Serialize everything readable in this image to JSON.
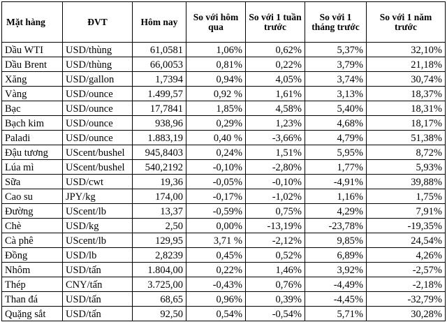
{
  "table": {
    "headers": [
      "Mặt hàng",
      "ĐVT",
      "Hôm nay",
      "So với hôm qua",
      "So với 1 tuần trước",
      "So với 1 tháng trước",
      "So với 1 năm trước"
    ],
    "rows": [
      [
        "Dầu WTI",
        "USD/thùng",
        "61,0581",
        "1,06%",
        "0,62%",
        "5,37%",
        "32,10%"
      ],
      [
        "Dầu Brent",
        "USD/thùng",
        "66,0053",
        "0,81%",
        "0,22%",
        "3,79%",
        "21,18%"
      ],
      [
        "Xăng",
        "USD/gallon",
        "1,7394",
        "0,94%",
        "4,05%",
        "3,74%",
        "30,74%"
      ],
      [
        "Vàng",
        "USD/ounce",
        "1.499,57",
        "0,92 %",
        "1,61%",
        "3,13%",
        "18,37%"
      ],
      [
        "Bạc",
        "USD/ounce",
        "17,7841",
        "1,85%",
        "4,58%",
        "5,40%",
        "18,31%"
      ],
      [
        "Bạch kim",
        "USD/ounce",
        "938,96",
        "0,29%",
        "1,23%",
        "4,68%",
        "18,17%"
      ],
      [
        "Paladi",
        "USD/ounce",
        "1.883,19",
        "0,40 %",
        "-3,66%",
        "4,79%",
        "51,38%"
      ],
      [
        "Đậu tương",
        "UScent/bushel",
        "945,8403",
        "0,24%",
        "1,51%",
        "5,95%",
        "8,72%"
      ],
      [
        "Lúa mì",
        "UScent/bushel",
        "540,2192",
        "-0,10%",
        "-2,80%",
        "1,77%",
        "5,93%"
      ],
      [
        "Sữa",
        "USD/cwt",
        "19,36",
        "-0,05%",
        "-0,10%",
        "-4,91%",
        "39,88%"
      ],
      [
        "Cao su",
        "JPY/kg",
        "174,00",
        "-0,17%",
        "-1,02%",
        "1,16%",
        "1,75%"
      ],
      [
        "Đường",
        "UScent/lb",
        "13,37",
        "-0,59%",
        "0,75%",
        "4,29%",
        "7,91%"
      ],
      [
        "Chè",
        "USD/kg",
        "2,50",
        "0,00%",
        "-13,19%",
        "-23,78%",
        "-19,35%"
      ],
      [
        "Cà phê",
        "UScent/lb",
        "129,95",
        "3,71 %",
        "-2,12%",
        "9,85%",
        "24,54%"
      ],
      [
        "Đồng",
        "USD/lb",
        "2,8239",
        "0,45%",
        "0,52%",
        "6,89%",
        "4,26%"
      ],
      [
        "Nhôm",
        "USD/tấn",
        "1.804,00",
        "0,22%",
        "1,46%",
        "3,92%",
        "-2,57%"
      ],
      [
        "Thép",
        "CNY/tấn",
        "3.725,00",
        "-0,43%",
        "0,76%",
        "-4,49%",
        "-2,18%"
      ],
      [
        "Than đá",
        "USD/tấn",
        "68,65",
        "0,96%",
        "0,39%",
        "-4,45%",
        "-32,79%"
      ],
      [
        "Quặng sắt",
        "USD/tấn",
        "92,50",
        "0,54%",
        "-0,54%",
        "5,71%",
        "30,28%"
      ]
    ]
  }
}
